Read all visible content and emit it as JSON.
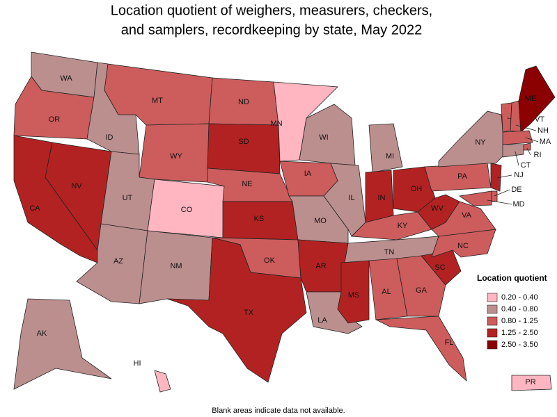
{
  "title": [
    "Location quotient of weighers, measurers, checkers,",
    "and samplers, recordkeeping by state, May 2022"
  ],
  "legend": {
    "title": "Location quotient",
    "classes": [
      {
        "label": "0.20 - 0.40",
        "color": "#ffb6c1"
      },
      {
        "label": "0.40 - 0.80",
        "color": "#bc8f8f"
      },
      {
        "label": "0.80 - 1.25",
        "color": "#cd5c5c"
      },
      {
        "label": "1.25 - 2.50",
        "color": "#b22222"
      },
      {
        "label": "2.50 - 3.50",
        "color": "#8b0000"
      }
    ]
  },
  "states": [
    {
      "abbr": "WA",
      "class": 1
    },
    {
      "abbr": "OR",
      "class": 2
    },
    {
      "abbr": "CA",
      "class": 3
    },
    {
      "abbr": "NV",
      "class": 3
    },
    {
      "abbr": "ID",
      "class": 1
    },
    {
      "abbr": "MT",
      "class": 2
    },
    {
      "abbr": "WY",
      "class": 2
    },
    {
      "abbr": "UT",
      "class": 1
    },
    {
      "abbr": "CO",
      "class": 0
    },
    {
      "abbr": "AZ",
      "class": 1
    },
    {
      "abbr": "NM",
      "class": 1
    },
    {
      "abbr": "ND",
      "class": 2
    },
    {
      "abbr": "SD",
      "class": 3
    },
    {
      "abbr": "NE",
      "class": 2
    },
    {
      "abbr": "KS",
      "class": 3
    },
    {
      "abbr": "OK",
      "class": 2
    },
    {
      "abbr": "TX",
      "class": 3
    },
    {
      "abbr": "MN",
      "class": 0
    },
    {
      "abbr": "IA",
      "class": 2
    },
    {
      "abbr": "MO",
      "class": 1
    },
    {
      "abbr": "AR",
      "class": 3
    },
    {
      "abbr": "LA",
      "class": 1
    },
    {
      "abbr": "WI",
      "class": 1
    },
    {
      "abbr": "IL",
      "class": 1
    },
    {
      "abbr": "MI",
      "class": 1
    },
    {
      "abbr": "IN",
      "class": 3
    },
    {
      "abbr": "OH",
      "class": 3
    },
    {
      "abbr": "KY",
      "class": 2
    },
    {
      "abbr": "TN",
      "class": 1
    },
    {
      "abbr": "MS",
      "class": 3
    },
    {
      "abbr": "AL",
      "class": 2
    },
    {
      "abbr": "GA",
      "class": 2
    },
    {
      "abbr": "FL",
      "class": 2
    },
    {
      "abbr": "SC",
      "class": 3
    },
    {
      "abbr": "NC",
      "class": 2
    },
    {
      "abbr": "VA",
      "class": 2
    },
    {
      "abbr": "WV",
      "class": 3
    },
    {
      "abbr": "PA",
      "class": 2
    },
    {
      "abbr": "NY",
      "class": 1
    },
    {
      "abbr": "VT",
      "class": 2
    },
    {
      "abbr": "NH",
      "class": 2
    },
    {
      "abbr": "ME",
      "class": 4
    },
    {
      "abbr": "MA",
      "class": 2
    },
    {
      "abbr": "RI",
      "class": 2
    },
    {
      "abbr": "CT",
      "class": 1
    },
    {
      "abbr": "NJ",
      "class": 3
    },
    {
      "abbr": "DE",
      "class": 2
    },
    {
      "abbr": "MD",
      "class": 2
    },
    {
      "abbr": "AK",
      "class": 1
    },
    {
      "abbr": "HI",
      "class": 0
    },
    {
      "abbr": "PR",
      "class": 0
    }
  ],
  "note": "Blank areas indicate data not available."
}
